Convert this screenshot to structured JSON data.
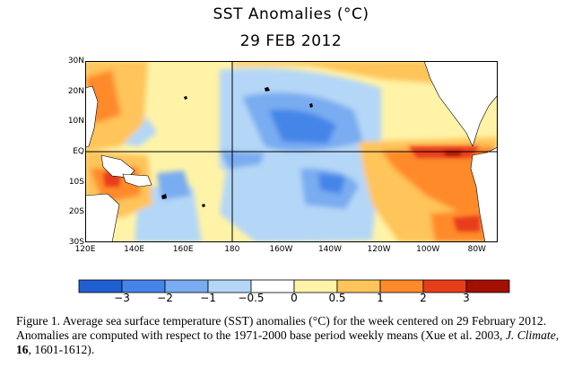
{
  "header": {
    "title": "SST Anomalies (°C)",
    "date": "29 FEB 2012"
  },
  "map": {
    "lat_labels": [
      "30N",
      "20N",
      "10N",
      "EQ",
      "10S",
      "20S",
      "30S"
    ],
    "lon_labels": [
      "120E",
      "140E",
      "160E",
      "180",
      "160W",
      "140W",
      "120W",
      "100W",
      "80W"
    ],
    "reference_lines": [
      "EQ",
      "180"
    ]
  },
  "colorbar": {
    "labels": [
      "−3",
      "−2",
      "−1",
      "−0.5",
      "0",
      "0.5",
      "1",
      "2",
      "3"
    ],
    "colors": [
      "#1f5fd1",
      "#4585e8",
      "#79acf0",
      "#b4d7f7",
      "#ffffff",
      "#fff3a8",
      "#ffc45a",
      "#ff8a2a",
      "#e83d1a",
      "#a31000"
    ]
  },
  "caption": {
    "prefix": "Figure 1. Average sea surface temperature (SST) anomalies (°C) for the week centered on 29 February 2012.   Anomalies are computed with respect to the 1971-2000 base period weekly means (Xue et al. 2003, ",
    "journal": "J. Climate",
    "sep1": ", ",
    "volume": "16",
    "suffix": ", 1601-1612)."
  }
}
